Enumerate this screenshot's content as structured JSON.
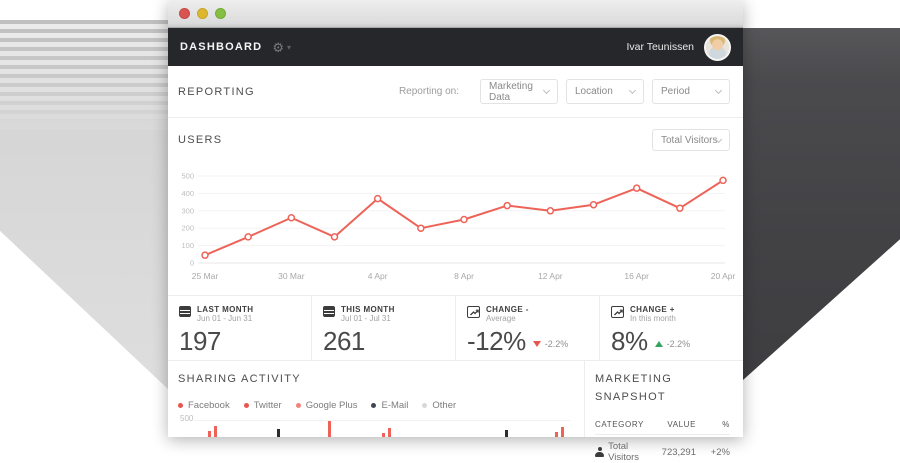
{
  "appbar": {
    "title": "DASHBOARD",
    "user_name": "Ivar Teunissen"
  },
  "icons": {
    "gear": "⚙",
    "caret_down": "▾"
  },
  "reporting": {
    "title": "REPORTING",
    "label": "Reporting on:",
    "dropdowns": [
      {
        "value": "Marketing Data"
      },
      {
        "value": "Location"
      },
      {
        "value": "Period"
      }
    ]
  },
  "users": {
    "title": "USERS",
    "dropdown_value": "Total Visitors"
  },
  "chart_data": [
    {
      "type": "line",
      "title": "Users — Total Visitors",
      "labels": [
        "25 Mar",
        "",
        "30 Mar",
        "",
        "4 Apr",
        "",
        "8 Apr",
        "",
        "12 Apr",
        "",
        "16 Apr",
        "",
        "20 Apr"
      ],
      "values": [
        45,
        150,
        260,
        150,
        370,
        200,
        250,
        330,
        300,
        335,
        430,
        315,
        475
      ],
      "yticks": [
        0,
        100,
        200,
        300,
        400,
        500
      ],
      "ylim": [
        0,
        500
      ],
      "line_color": "#ee6358",
      "grid": true,
      "legend_position": "none"
    },
    {
      "type": "bar",
      "title": "Sharing Activity (bottom-cropped in view)",
      "ytick_visible": 500,
      "bars": [
        {
          "x": 40,
          "h": 6,
          "color": "#ee6358"
        },
        {
          "x": 46,
          "h": 11,
          "color": "#ee6358"
        },
        {
          "x": 109,
          "h": 8,
          "color": "#2d2d2d"
        },
        {
          "x": 160,
          "h": 16,
          "color": "#ee6358"
        },
        {
          "x": 214,
          "h": 4,
          "color": "#ee6358"
        },
        {
          "x": 220,
          "h": 9,
          "color": "#ee6358"
        },
        {
          "x": 337,
          "h": 7,
          "color": "#2d2d2d"
        },
        {
          "x": 387,
          "h": 5,
          "color": "#ee6358"
        },
        {
          "x": 393,
          "h": 10,
          "color": "#ee6358"
        }
      ]
    }
  ],
  "stats": [
    {
      "label": "LAST MONTH",
      "sub": "Jun 01 - Jun 31",
      "value": "197",
      "delta": "",
      "direction": "none"
    },
    {
      "label": "THIS MONTH",
      "sub": "Jul 01 - Jul 31",
      "value": "261",
      "delta": "",
      "direction": "none"
    },
    {
      "label": "CHANGE -",
      "sub": "Average",
      "value": "-12%",
      "delta": "-2.2%",
      "direction": "down"
    },
    {
      "label": "CHANGE +",
      "sub": "In this month",
      "value": "8%",
      "delta": "-2.2%",
      "direction": "up"
    }
  ],
  "sharing": {
    "title": "SHARING ACTIVITY",
    "axis_label": "500",
    "legend": [
      {
        "label": "Facebook",
        "color": "#e8554e"
      },
      {
        "label": "Twitter",
        "color": "#e8554e"
      },
      {
        "label": "Google Plus",
        "color": "#f0837c"
      },
      {
        "label": "E-Mail",
        "color": "#3f4652"
      },
      {
        "label": "Other",
        "color": "#d8d8d8"
      }
    ]
  },
  "snapshot": {
    "title": "MARKETING SNAPSHOT",
    "columns": [
      "CATEGORY",
      "VALUE",
      "%"
    ],
    "rows": [
      {
        "category": "Total Visitors",
        "value": "723,291",
        "percent": "+2%"
      }
    ]
  },
  "colors": {
    "accent": "#ee6358",
    "appbar_bg": "#26272b",
    "positive": "#36a35c",
    "negative": "#e8554e"
  }
}
